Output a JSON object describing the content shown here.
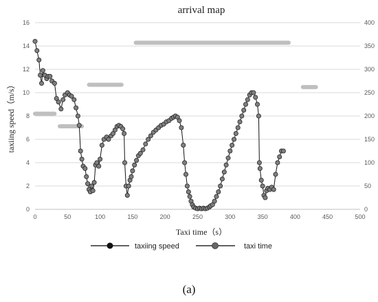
{
  "chart_data": {
    "type": "line",
    "title": "arrival map",
    "xlabel": "Taxi time（s）",
    "ylabel": "taxiing speed（m/s）",
    "xlim": [
      0,
      500
    ],
    "ylim": [
      0,
      16
    ],
    "y2lim": [
      0,
      400
    ],
    "x_ticks": [
      "0",
      "50",
      "100",
      "150",
      "200",
      "250",
      "300",
      "350",
      "400",
      "450",
      "500"
    ],
    "y_ticks": [
      "0",
      "2",
      "4",
      "6",
      "8",
      "10",
      "12",
      "14",
      "16"
    ],
    "y2_ticks": [
      "0",
      "50",
      "100",
      "150",
      "200",
      "250",
      "300",
      "350",
      "400"
    ],
    "grid": "horizontal",
    "legend_position": "bottom",
    "series": [
      {
        "name": "taxiing speed",
        "axis": "left",
        "color": "#000000",
        "points": [
          [
            0,
            14.4
          ],
          [
            3,
            13.6
          ],
          [
            6,
            12.8
          ],
          [
            8,
            11.5
          ],
          [
            10,
            10.8
          ],
          [
            12,
            11.9
          ],
          [
            15,
            11.5
          ],
          [
            18,
            11.2
          ],
          [
            20,
            11.4
          ],
          [
            23,
            11.4
          ],
          [
            26,
            11.0
          ],
          [
            30,
            10.8
          ],
          [
            33,
            9.5
          ],
          [
            36,
            9.2
          ],
          [
            40,
            8.6
          ],
          [
            43,
            9.4
          ],
          [
            46,
            9.8
          ],
          [
            50,
            10.0
          ],
          [
            53,
            9.8
          ],
          [
            56,
            9.7
          ],
          [
            60,
            9.4
          ],
          [
            63,
            8.7
          ],
          [
            66,
            8.0
          ],
          [
            68,
            7.2
          ],
          [
            70,
            5.0
          ],
          [
            72,
            4.3
          ],
          [
            74,
            3.7
          ],
          [
            77,
            3.5
          ],
          [
            79,
            2.8
          ],
          [
            81,
            2.2
          ],
          [
            83,
            1.7
          ],
          [
            85,
            1.5
          ],
          [
            87,
            2.0
          ],
          [
            89,
            1.6
          ],
          [
            91,
            2.3
          ],
          [
            93,
            3.8
          ],
          [
            95,
            4.0
          ],
          [
            98,
            3.7
          ],
          [
            100,
            4.3
          ],
          [
            103,
            5.5
          ],
          [
            106,
            6.0
          ],
          [
            110,
            6.2
          ],
          [
            113,
            6.0
          ],
          [
            117,
            6.3
          ],
          [
            120,
            6.5
          ],
          [
            123,
            6.8
          ],
          [
            126,
            7.1
          ],
          [
            129,
            7.2
          ],
          [
            132,
            7.1
          ],
          [
            135,
            6.9
          ],
          [
            137,
            6.5
          ],
          [
            138,
            4.0
          ],
          [
            140,
            2.0
          ],
          [
            142,
            1.2
          ],
          [
            144,
            2.0
          ],
          [
            146,
            2.5
          ],
          [
            148,
            2.8
          ],
          [
            150,
            3.3
          ],
          [
            153,
            3.8
          ],
          [
            156,
            4.2
          ],
          [
            159,
            4.6
          ],
          [
            162,
            4.8
          ],
          [
            166,
            5.1
          ],
          [
            170,
            5.6
          ],
          [
            174,
            6.0
          ],
          [
            178,
            6.3
          ],
          [
            182,
            6.6
          ],
          [
            186,
            6.8
          ],
          [
            190,
            7.0
          ],
          [
            194,
            7.2
          ],
          [
            198,
            7.3
          ],
          [
            202,
            7.5
          ],
          [
            206,
            7.6
          ],
          [
            210,
            7.8
          ],
          [
            213,
            7.9
          ],
          [
            216,
            8.0
          ],
          [
            219,
            7.9
          ],
          [
            222,
            7.6
          ],
          [
            225,
            7.0
          ],
          [
            228,
            5.5
          ],
          [
            230,
            4.0
          ],
          [
            232,
            3.0
          ],
          [
            234,
            2.0
          ],
          [
            236,
            1.5
          ],
          [
            238,
            1.1
          ],
          [
            240,
            0.7
          ],
          [
            242,
            0.4
          ],
          [
            244,
            0.2
          ],
          [
            247,
            0.1
          ],
          [
            250,
            0.05
          ],
          [
            253,
            0.1
          ],
          [
            256,
            0.05
          ],
          [
            259,
            0.1
          ],
          [
            262,
            0.05
          ],
          [
            265,
            0.1
          ],
          [
            268,
            0.2
          ],
          [
            270,
            0.3
          ],
          [
            273,
            0.4
          ],
          [
            276,
            0.7
          ],
          [
            279,
            1.1
          ],
          [
            282,
            1.5
          ],
          [
            285,
            2.0
          ],
          [
            288,
            2.6
          ],
          [
            291,
            3.2
          ],
          [
            294,
            3.8
          ],
          [
            297,
            4.4
          ],
          [
            300,
            5.0
          ],
          [
            303,
            5.5
          ],
          [
            306,
            6.0
          ],
          [
            309,
            6.5
          ],
          [
            312,
            7.0
          ],
          [
            315,
            7.5
          ],
          [
            318,
            8.0
          ],
          [
            321,
            8.5
          ],
          [
            324,
            9.0
          ],
          [
            327,
            9.4
          ],
          [
            330,
            9.8
          ],
          [
            333,
            10.0
          ],
          [
            336,
            10.0
          ],
          [
            339,
            9.6
          ],
          [
            342,
            9.0
          ],
          [
            344,
            8.0
          ],
          [
            345,
            4.0
          ],
          [
            346,
            3.5
          ],
          [
            348,
            2.5
          ],
          [
            350,
            2.0
          ],
          [
            352,
            1.2
          ],
          [
            354,
            1.0
          ],
          [
            356,
            1.6
          ],
          [
            358,
            1.8
          ],
          [
            361,
            1.7
          ],
          [
            364,
            1.9
          ],
          [
            367,
            1.7
          ],
          [
            370,
            3.0
          ],
          [
            373,
            4.0
          ],
          [
            376,
            4.5
          ],
          [
            379,
            5.0
          ],
          [
            382,
            5.0
          ]
        ]
      },
      {
        "name": "taxi time",
        "axis": "right",
        "color": "#bfbfbf",
        "segments": [
          {
            "x0": 0,
            "x1": 30,
            "y": 205
          },
          {
            "x0": 38,
            "x1": 72,
            "y": 178
          },
          {
            "x0": 83,
            "x1": 133,
            "y": 267
          },
          {
            "x0": 155,
            "x1": 390,
            "y": 357
          },
          {
            "x0": 412,
            "x1": 432,
            "y": 262
          }
        ]
      }
    ]
  },
  "caption": "(a)"
}
